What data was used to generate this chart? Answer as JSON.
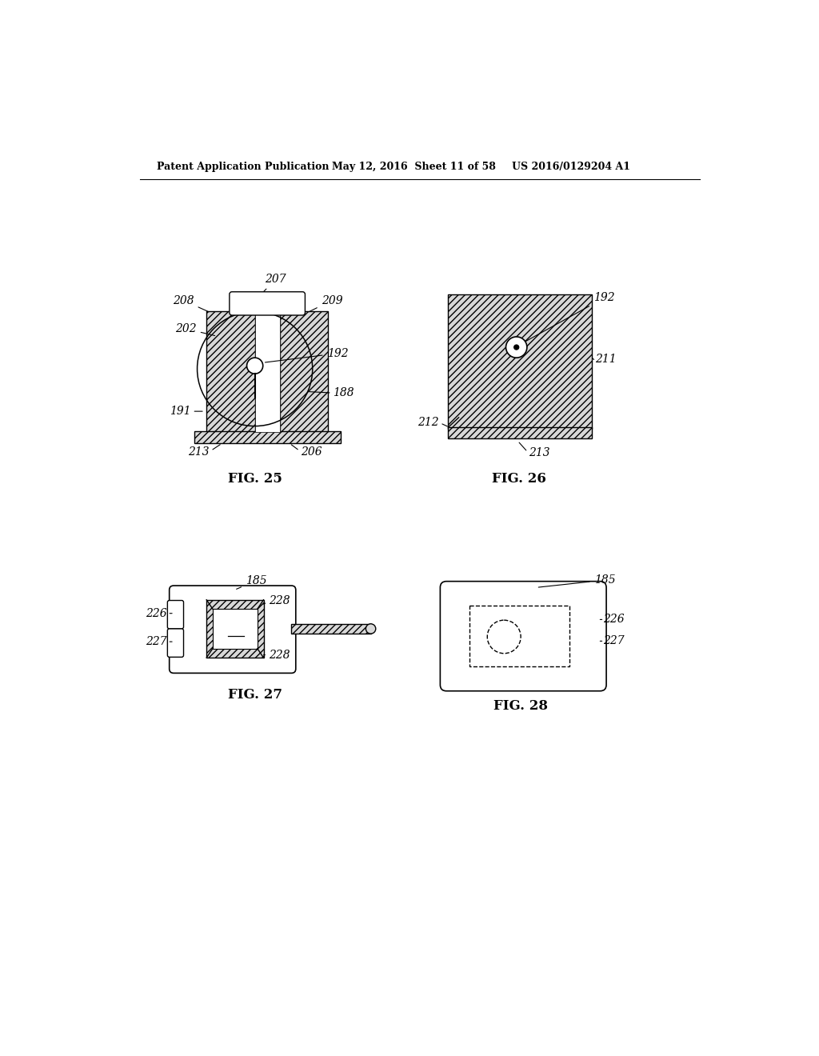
{
  "header_left": "Patent Application Publication",
  "header_mid": "May 12, 2016  Sheet 11 of 58",
  "header_right": "US 2016/0129204 A1",
  "bg_color": "#ffffff",
  "line_color": "#000000",
  "fig25_label": "FIG. 25",
  "fig26_label": "FIG. 26",
  "fig27_label": "FIG. 27",
  "fig28_label": "FIG. 28"
}
